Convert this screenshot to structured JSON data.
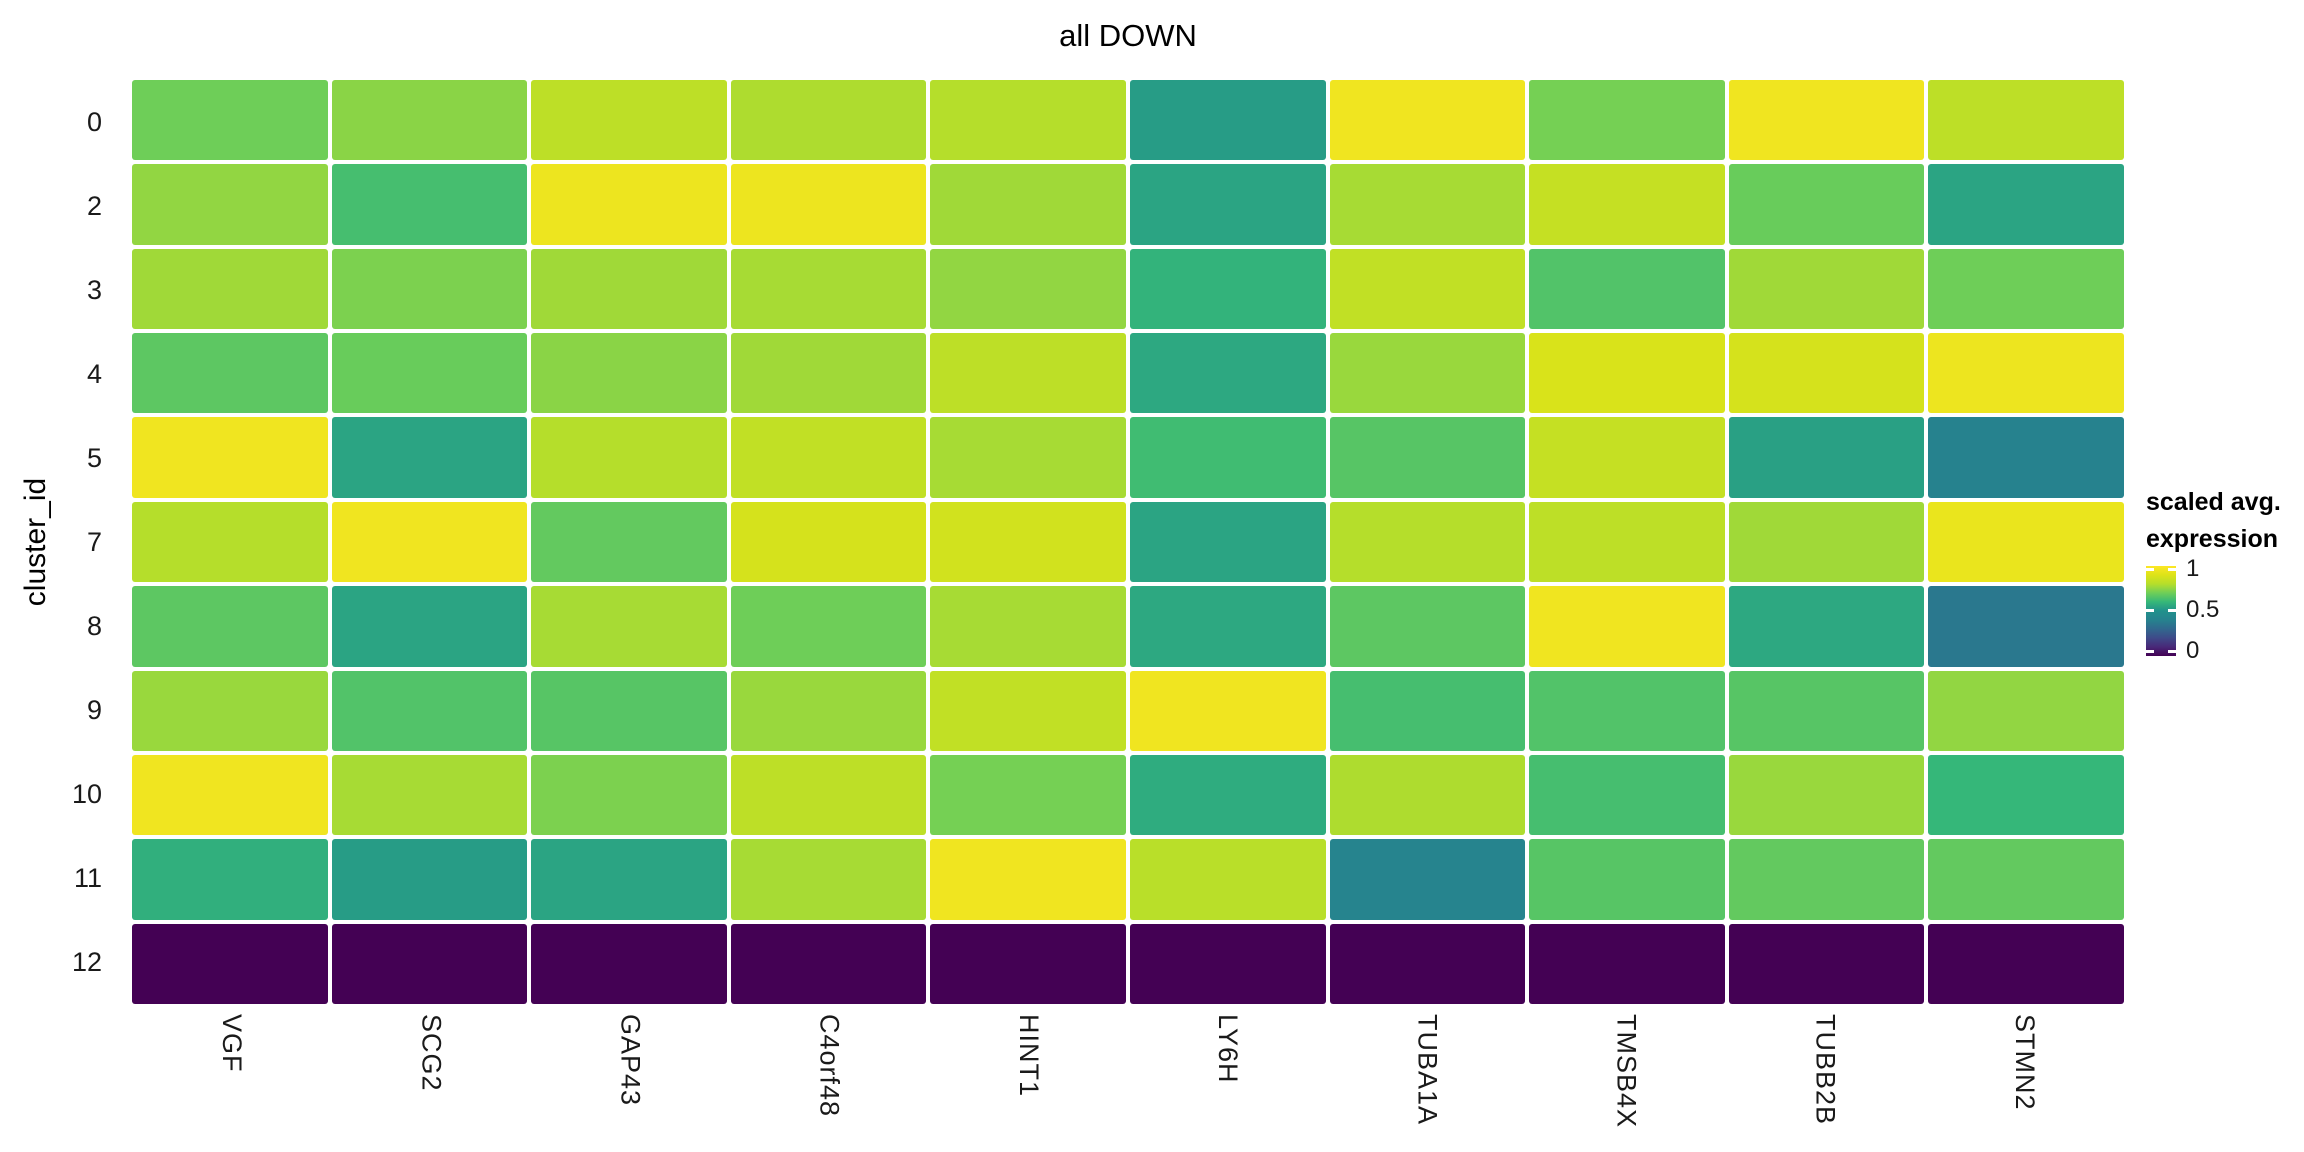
{
  "chart_data": {
    "type": "heatmap",
    "title": "all DOWN",
    "y_axis_label": "cluster_id",
    "x_categories": [
      "VGF",
      "SCG2",
      "GAP43",
      "C4orf48",
      "HINT1",
      "LY6H",
      "TUBA1A",
      "TMSB4X",
      "TUBB2B",
      "STMN2"
    ],
    "y_categories": [
      "0",
      "2",
      "3",
      "4",
      "5",
      "7",
      "8",
      "9",
      "10",
      "11",
      "12"
    ],
    "values": [
      [
        0.7,
        0.74,
        0.82,
        0.79,
        0.8,
        0.53,
        0.96,
        0.71,
        0.96,
        0.82
      ],
      [
        0.75,
        0.63,
        0.95,
        0.95,
        0.77,
        0.55,
        0.78,
        0.84,
        0.69,
        0.55
      ],
      [
        0.77,
        0.72,
        0.77,
        0.78,
        0.75,
        0.59,
        0.83,
        0.65,
        0.77,
        0.7
      ],
      [
        0.67,
        0.69,
        0.74,
        0.77,
        0.82,
        0.56,
        0.76,
        0.89,
        0.88,
        0.95
      ],
      [
        0.96,
        0.55,
        0.8,
        0.83,
        0.78,
        0.62,
        0.66,
        0.84,
        0.54,
        0.4
      ],
      [
        0.8,
        0.96,
        0.68,
        0.88,
        0.87,
        0.55,
        0.8,
        0.82,
        0.77,
        0.94
      ],
      [
        0.67,
        0.55,
        0.78,
        0.7,
        0.78,
        0.56,
        0.67,
        0.96,
        0.56,
        0.36
      ],
      [
        0.76,
        0.65,
        0.66,
        0.76,
        0.83,
        0.96,
        0.63,
        0.65,
        0.66,
        0.75
      ],
      [
        0.96,
        0.78,
        0.72,
        0.82,
        0.71,
        0.57,
        0.79,
        0.63,
        0.76,
        0.6
      ],
      [
        0.58,
        0.53,
        0.55,
        0.78,
        0.96,
        0.81,
        0.41,
        0.66,
        0.68,
        0.68
      ],
      [
        0.0,
        0.0,
        0.0,
        0.0,
        0.0,
        0.0,
        0.0,
        0.0,
        0.0,
        0.0
      ]
    ],
    "value_range": [
      0,
      1
    ],
    "grid": false,
    "legend_position": "right",
    "legend": {
      "title_line1": "scaled avg.",
      "title_line2": "expression",
      "ticks": [
        {
          "label": "1",
          "value": 1
        },
        {
          "label": "0.5",
          "value": 0.5
        },
        {
          "label": "0",
          "value": 0
        }
      ]
    },
    "colormap_stops": [
      "#440154",
      "#482878",
      "#3e4a89",
      "#31688e",
      "#26828e",
      "#21918c",
      "#35b779",
      "#6ece58",
      "#b5de2b",
      "#dde318",
      "#fde725"
    ]
  },
  "colors": {
    "background": "#ffffff",
    "cell_gap": "#ffffff",
    "title_text": "#000000",
    "tick_text": "#1a1a1a"
  }
}
